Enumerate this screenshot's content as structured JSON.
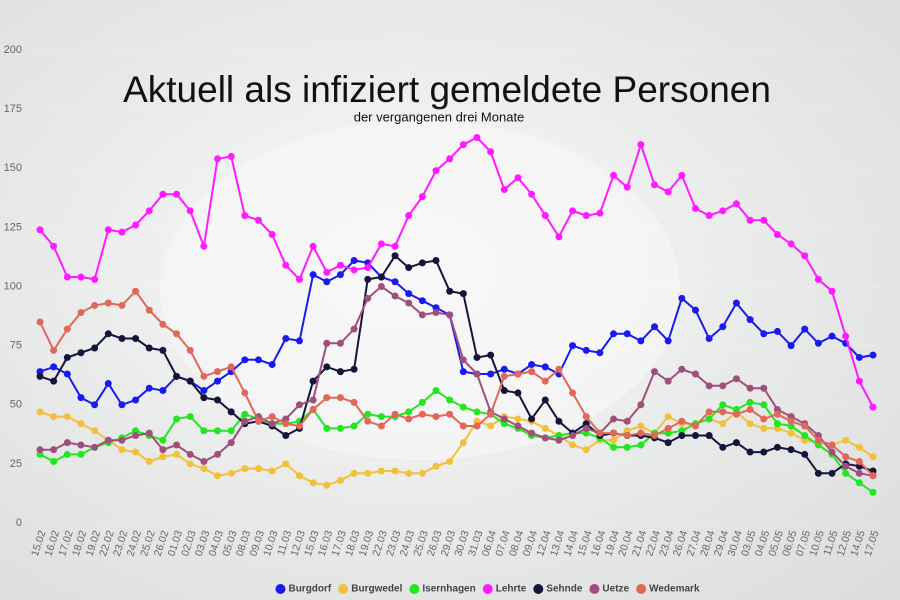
{
  "chart_data": {
    "type": "line",
    "title": "Aktuell als infiziert gemeldete Personen",
    "subtitle": "der vergangenen drei Monate",
    "categories": [
      "15.02",
      "16.02",
      "17.02",
      "18.02",
      "19.02",
      "22.02",
      "23.02",
      "24.02",
      "25.02",
      "26.02",
      "01.03",
      "02.03",
      "03.03",
      "04.03",
      "05.03",
      "08.03",
      "09.03",
      "10.03",
      "11.03",
      "12.03",
      "15.03",
      "16.03",
      "17.03",
      "18.03",
      "19.03",
      "22.03",
      "23.03",
      "24.03",
      "25.03",
      "26.03",
      "29.03",
      "30.03",
      "31.03",
      "06.04",
      "07.04",
      "08.04",
      "09.04",
      "12.04",
      "13.04",
      "14.04",
      "15.04",
      "16.04",
      "19.04",
      "20.04",
      "21.04",
      "22.04",
      "23.04",
      "26.04",
      "27.04",
      "28.04",
      "29.04",
      "30.04",
      "03.05",
      "04.05",
      "05.05",
      "06.05",
      "07.05",
      "10.05",
      "11.05",
      "12.05",
      "14.05",
      "17.05"
    ],
    "series": [
      {
        "name": "Burgdorf",
        "color": "#1a1aee",
        "values": [
          64,
          66,
          63,
          53,
          50,
          59,
          50,
          52,
          57,
          56,
          62,
          60,
          56,
          60,
          64,
          69,
          69,
          67,
          78,
          77,
          105,
          102,
          105,
          111,
          110,
          104,
          102,
          97,
          94,
          91,
          88,
          64,
          63,
          63,
          65,
          63,
          67,
          66,
          63,
          75,
          73,
          72,
          80,
          80,
          77,
          83,
          77,
          95,
          90,
          78,
          83,
          93,
          86,
          80,
          81,
          75,
          82,
          76,
          79,
          76,
          70,
          71
        ]
      },
      {
        "name": "Burgwedel",
        "color": "#f2c03a",
        "values": [
          47,
          45,
          45,
          42,
          39,
          35,
          31,
          30,
          26,
          28,
          29,
          25,
          23,
          20,
          21,
          23,
          23,
          22,
          25,
          20,
          17,
          16,
          18,
          21,
          21,
          22,
          22,
          21,
          21,
          24,
          26,
          34,
          43,
          41,
          45,
          44,
          43,
          40,
          37,
          33,
          31,
          35,
          35,
          39,
          41,
          38,
          45,
          42,
          42,
          44,
          42,
          47,
          42,
          40,
          40,
          38,
          35,
          34,
          33,
          35,
          32,
          28
        ]
      },
      {
        "name": "Isernhagen",
        "color": "#22e622",
        "values": [
          29,
          26,
          29,
          29,
          32,
          34,
          36,
          39,
          37,
          35,
          44,
          45,
          39,
          39,
          39,
          46,
          44,
          42,
          42,
          43,
          48,
          40,
          40,
          41,
          46,
          45,
          45,
          47,
          51,
          56,
          52,
          49,
          47,
          46,
          42,
          40,
          37,
          36,
          37,
          38,
          38,
          36,
          32,
          32,
          33,
          38,
          38,
          39,
          42,
          44,
          50,
          48,
          51,
          50,
          42,
          41,
          37,
          33,
          29,
          21,
          17,
          13
        ]
      },
      {
        "name": "Lehrte",
        "color": "#ff1aff",
        "values": [
          124,
          117,
          104,
          104,
          103,
          124,
          123,
          126,
          132,
          139,
          139,
          132,
          117,
          154,
          155,
          130,
          128,
          122,
          109,
          103,
          117,
          106,
          109,
          107,
          108,
          118,
          117,
          130,
          138,
          149,
          154,
          160,
          163,
          157,
          141,
          146,
          139,
          130,
          121,
          132,
          130,
          131,
          147,
          142,
          160,
          143,
          140,
          147,
          133,
          130,
          132,
          135,
          128,
          128,
          122,
          118,
          113,
          103,
          98,
          79,
          60,
          49
        ]
      },
      {
        "name": "Sehnde",
        "color": "#15153c",
        "values": [
          62,
          60,
          70,
          72,
          74,
          80,
          78,
          78,
          74,
          73,
          62,
          60,
          53,
          52,
          47,
          42,
          43,
          41,
          37,
          40,
          60,
          66,
          64,
          65,
          103,
          104,
          113,
          108,
          110,
          111,
          98,
          97,
          70,
          71,
          56,
          55,
          44,
          52,
          43,
          38,
          42,
          37,
          38,
          37,
          37,
          36,
          34,
          37,
          37,
          37,
          32,
          34,
          30,
          30,
          32,
          31,
          29,
          21,
          21,
          25,
          24,
          22
        ]
      },
      {
        "name": "Uetze",
        "color": "#a04f7c",
        "values": [
          31,
          31,
          34,
          33,
          32,
          35,
          35,
          37,
          38,
          31,
          33,
          29,
          26,
          29,
          34,
          43,
          45,
          42,
          44,
          50,
          52,
          76,
          76,
          82,
          95,
          100,
          96,
          93,
          88,
          89,
          88,
          69,
          63,
          47,
          44,
          41,
          38,
          36,
          35,
          37,
          40,
          38,
          44,
          43,
          50,
          64,
          60,
          65,
          63,
          58,
          58,
          61,
          57,
          57,
          48,
          45,
          42,
          37,
          30,
          24,
          21,
          20
        ]
      },
      {
        "name": "Wedemark",
        "color": "#e0685a",
        "values": [
          85,
          73,
          82,
          89,
          92,
          93,
          92,
          98,
          90,
          84,
          80,
          73,
          62,
          64,
          66,
          55,
          43,
          45,
          42,
          41,
          48,
          53,
          53,
          51,
          43,
          41,
          46,
          44,
          46,
          45,
          46,
          41,
          41,
          46,
          62,
          63,
          64,
          60,
          65,
          55,
          45,
          38,
          38,
          37,
          38,
          37,
          40,
          43,
          41,
          47,
          47,
          46,
          48,
          44,
          46,
          43,
          41,
          35,
          33,
          28,
          26,
          20
        ]
      }
    ],
    "ylim": [
      0,
      200
    ],
    "yticks": [
      0,
      25,
      50,
      75,
      100,
      125,
      150,
      175,
      200
    ],
    "legend": "bottom"
  }
}
